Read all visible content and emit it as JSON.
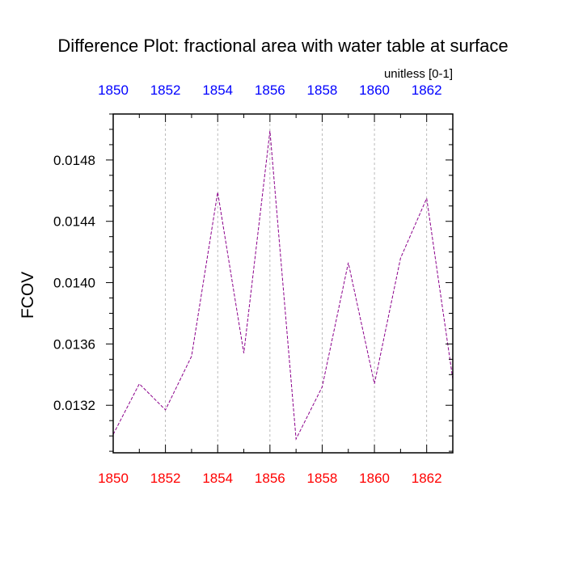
{
  "chart_data": {
    "type": "line",
    "title": "Difference Plot: fractional area with water table at surface",
    "units_label": "unitless [0-1]",
    "ylabel": "FCOV",
    "xlabel": "",
    "xlim": [
      1850,
      1863
    ],
    "ylim": [
      0.01289,
      0.0151
    ],
    "x_ticks": [
      1850,
      1852,
      1854,
      1856,
      1858,
      1860,
      1862
    ],
    "x_tick_labels": [
      "1850",
      "1852",
      "1854",
      "1856",
      "1858",
      "1860",
      "1862"
    ],
    "y_ticks": [
      0.0132,
      0.0136,
      0.014,
      0.0144,
      0.0148
    ],
    "y_tick_labels": [
      "0.0132",
      "0.0136",
      "0.0140",
      "0.0144",
      "0.0148"
    ],
    "grid": "vertical-dashed",
    "colors": {
      "top_axis_labels": "#0000ff",
      "bottom_axis_labels": "#ff0000",
      "series_line": "#8b008b",
      "grid": "#aaaaaa"
    },
    "series": [
      {
        "name": "difference",
        "x": [
          1850,
          1851,
          1852,
          1853,
          1854,
          1855,
          1856,
          1857,
          1858,
          1859,
          1860,
          1861,
          1862,
          1863
        ],
        "values": [
          0.01301,
          0.01334,
          0.01317,
          0.01352,
          0.01459,
          0.01354,
          0.01499,
          0.01298,
          0.01332,
          0.01413,
          0.01334,
          0.01416,
          0.01455,
          0.01337
        ]
      }
    ]
  }
}
